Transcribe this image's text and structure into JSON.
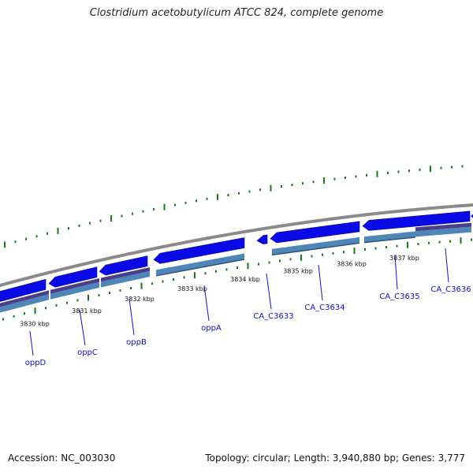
{
  "title": "Clostridium acetobutylicum ATCC 824, complete genome",
  "footer": {
    "accession": "Accession: NC_003030",
    "summary": "Topology: circular; Length: 3,940,880 bp; Genes: 3,777"
  },
  "colors": {
    "gene_forward": "#0a0ae6",
    "gene_reverse": "#0a0ae6",
    "cds_band_forward": "#4f86b8",
    "cds_band_reverse": "#4b3f8c",
    "backbone": "#8a8a8a",
    "tick": "#1a7a1a",
    "label": "#1010c8"
  },
  "scale_labels": [
    "3830 kbp",
    "3831 kbp",
    "3832 kbp",
    "3833 kbp",
    "3834 kbp",
    "3835 kbp",
    "3836 kbp",
    "3837 kbp"
  ],
  "genes": [
    {
      "name": "oppD"
    },
    {
      "name": "oppC"
    },
    {
      "name": "oppB"
    },
    {
      "name": "oppA"
    },
    {
      "name": "CA_C3633"
    },
    {
      "name": "CA_C3634"
    },
    {
      "name": "CA_C3635"
    },
    {
      "name": "CA_C3636"
    }
  ]
}
